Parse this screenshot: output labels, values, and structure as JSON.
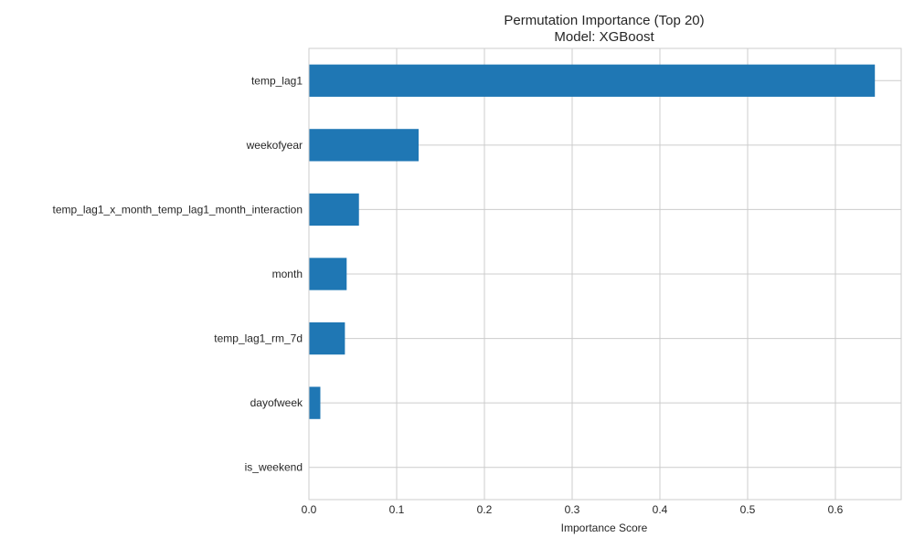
{
  "chart_data": {
    "type": "bar",
    "orientation": "horizontal",
    "title": "Permutation Importance (Top 20)",
    "subtitle": "Model: XGBoost",
    "xlabel": "Importance Score",
    "ylabel": "",
    "xlim": [
      0,
      0.675
    ],
    "xticks": [
      0.0,
      0.1,
      0.2,
      0.3,
      0.4,
      0.5,
      0.6
    ],
    "xtick_labels": [
      "0.0",
      "0.1",
      "0.2",
      "0.3",
      "0.4",
      "0.5",
      "0.6"
    ],
    "grid": true,
    "bar_color": "#1f77b4",
    "categories": [
      "temp_lag1",
      "weekofyear",
      "temp_lag1_x_month_temp_lag1_month_interaction",
      "month",
      "temp_lag1_rm_7d",
      "dayofweek",
      "is_weekend"
    ],
    "values": [
      0.645,
      0.125,
      0.057,
      0.043,
      0.041,
      0.013,
      0.0
    ]
  }
}
